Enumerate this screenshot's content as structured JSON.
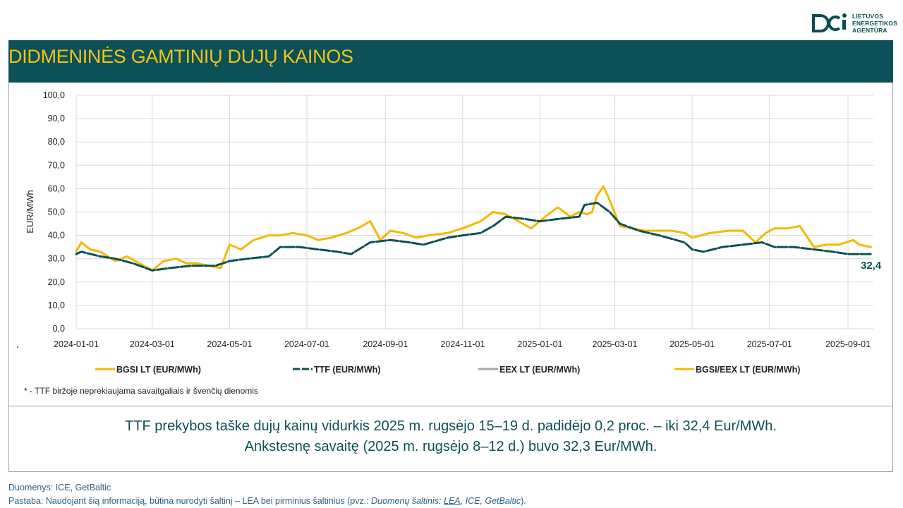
{
  "logo": {
    "line1": "LIETUVOS",
    "line2": "ENERGETIKOS",
    "line3": "AGENTŪRA"
  },
  "title": "DIDMENINĖS GAMTINIŲ DUJŲ KAINOS",
  "chart_data": {
    "type": "line",
    "ylabel": "EUR/MWh",
    "ylim": [
      0,
      100
    ],
    "y_ticks": [
      "0,0",
      "10,0",
      "20,0",
      "30,0",
      "40,0",
      "50,0",
      "60,0",
      "70,0",
      "80,0",
      "90,0",
      "100,0"
    ],
    "x_ticks": [
      "2024-01-01",
      "2024-03-01",
      "2024-05-01",
      "2024-07-01",
      "2024-09-01",
      "2024-11-01",
      "2025-01-01",
      "2025-03-01",
      "2025-05-01",
      "2025-07-01",
      "2025-09-01"
    ],
    "x_range": [
      "2024-01-01",
      "2025-09-21"
    ],
    "grid": true,
    "legend_position": "bottom",
    "series": [
      {
        "name": "BGSI LT (EUR/MWh)",
        "color": "#f5b800",
        "x": [
          "2024-01-01",
          "2024-01-05",
          "2024-01-12",
          "2024-01-20",
          "2024-02-01",
          "2024-02-10",
          "2024-02-20",
          "2024-03-01",
          "2024-03-10",
          "2024-03-20",
          "2024-03-28",
          "2024-04-05",
          "2024-04-15",
          "2024-04-24",
          "2024-05-01",
          "2024-05-10",
          "2024-05-20",
          "2024-06-01",
          "2024-06-10",
          "2024-06-20",
          "2024-07-01",
          "2024-07-10",
          "2024-07-20",
          "2024-08-01",
          "2024-08-10",
          "2024-08-20",
          "2024-08-28",
          "2024-09-05",
          "2024-09-15",
          "2024-09-25",
          "2024-10-05",
          "2024-10-20",
          "2024-11-01",
          "2024-11-15",
          "2024-11-25",
          "2024-12-05",
          "2024-12-15",
          "2024-12-25",
          "2025-01-05",
          "2025-01-15",
          "2025-01-25",
          "2025-02-01",
          "2025-02-07",
          "2025-02-11",
          "2025-02-15",
          "2025-02-20",
          "2025-02-25",
          "2025-03-05",
          "2025-03-15",
          "2025-03-25",
          "2025-04-05",
          "2025-04-15",
          "2025-04-25",
          "2025-05-01",
          "2025-05-15",
          "2025-05-30",
          "2025-06-10",
          "2025-06-20",
          "2025-06-28",
          "2025-07-05",
          "2025-07-15",
          "2025-07-25",
          "2025-08-05",
          "2025-08-15",
          "2025-08-25",
          "2025-09-05",
          "2025-09-10",
          "2025-09-19"
        ],
        "y": [
          33,
          37,
          34,
          33,
          29,
          31,
          28,
          25,
          29,
          30,
          28,
          28,
          27,
          26,
          36,
          34,
          38,
          40,
          40,
          41,
          40,
          38,
          39,
          41,
          43,
          46,
          38,
          42,
          41,
          39,
          40,
          41,
          43,
          46,
          50,
          49,
          46,
          43,
          48,
          52,
          48,
          50,
          49,
          50,
          57,
          61,
          55,
          44,
          43,
          42,
          42,
          42,
          41,
          39,
          41,
          42,
          42,
          37,
          41,
          43,
          43,
          44,
          35,
          36,
          36,
          38,
          36,
          35
        ]
      },
      {
        "name": "TTF (EUR/MWh)",
        "color": "#0b5157",
        "x": [
          "2024-01-01",
          "2024-01-05",
          "2024-01-20",
          "2024-02-01",
          "2024-02-15",
          "2024-03-01",
          "2024-03-15",
          "2024-04-01",
          "2024-04-20",
          "2024-05-01",
          "2024-05-15",
          "2024-06-01",
          "2024-06-10",
          "2024-06-25",
          "2024-07-10",
          "2024-07-25",
          "2024-08-05",
          "2024-08-20",
          "2024-09-05",
          "2024-09-20",
          "2024-10-01",
          "2024-10-20",
          "2024-11-01",
          "2024-11-15",
          "2024-11-25",
          "2024-12-05",
          "2024-12-20",
          "2025-01-01",
          "2025-01-15",
          "2025-02-01",
          "2025-02-05",
          "2025-02-15",
          "2025-02-25",
          "2025-03-05",
          "2025-03-20",
          "2025-04-05",
          "2025-04-25",
          "2025-05-01",
          "2025-05-10",
          "2025-05-25",
          "2025-06-10",
          "2025-06-25",
          "2025-07-05",
          "2025-07-20",
          "2025-08-05",
          "2025-08-20",
          "2025-09-01",
          "2025-09-19"
        ],
        "y": [
          32,
          33,
          31,
          30,
          28,
          25,
          26,
          27,
          27,
          29,
          30,
          31,
          35,
          35,
          34,
          33,
          32,
          37,
          38,
          37,
          36,
          39,
          40,
          41,
          44,
          48,
          47,
          46,
          47,
          48,
          53,
          54,
          50,
          45,
          42,
          40,
          37,
          34,
          33,
          35,
          36,
          37,
          35,
          35,
          34,
          33,
          32,
          32
        ]
      },
      {
        "name": "EEX LT (EUR/MWh)",
        "color": "#a6a6a6",
        "x": [],
        "y": []
      },
      {
        "name": "BGSI/EEX LT (EUR/MWh)",
        "color": "#f5b800",
        "x": [],
        "y": []
      }
    ],
    "annotation": "32,4"
  },
  "footnote": "* - TTF biržoje neprekiaujama savaitgaliais ir švenčių dienomis",
  "summary": {
    "line1": "TTF prekybos taške dujų kainų vidurkis 2025 m. rugsėjo 15–19 d. padidėjo 0,2 proc. – iki 32,4 Eur/MWh.",
    "line2": "Ankstesnę savaitę (2025 m. rugsėjo 8–12 d.) buvo 32,3 Eur/MWh."
  },
  "source": {
    "line1": "Duomenys: ICE, GetBaltic",
    "line2_prefix": "Pastaba: Naudojant šią informaciją, būtina nurodyti šaltinį – LEA bei pirminius šaltinius (pvz.: ",
    "line2_italic": "Duomenų šaltinis: ",
    "line2_link": "LEA",
    "line2_rest": ", ICE, GetBaltic",
    "line2_suffix": ")."
  }
}
